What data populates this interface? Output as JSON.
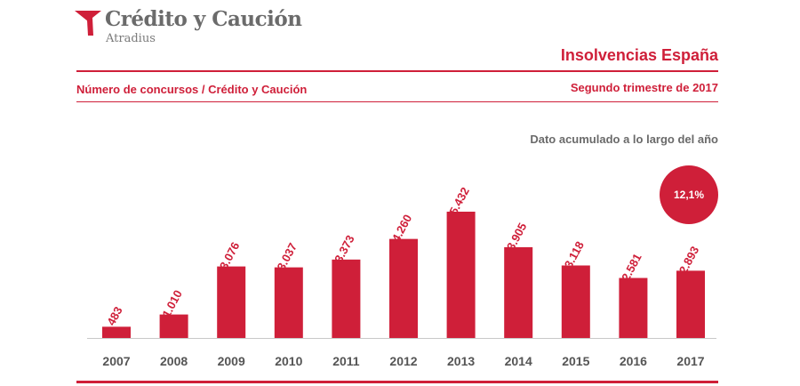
{
  "brand": {
    "name": "Crédito y Caución",
    "sub": "Atradius",
    "color": "#cf1f39"
  },
  "header": {
    "title": "Insolvencias España",
    "subtitle": "Número de concursos  / Crédito y Caución",
    "period": "Segundo trimestre de  2017",
    "note": "Dato acumulado a lo largo del año"
  },
  "chart_data": {
    "type": "bar",
    "categories": [
      "2007",
      "2008",
      "2009",
      "2010",
      "2011",
      "2012",
      "2013",
      "2014",
      "2015",
      "2016",
      "2017"
    ],
    "values": [
      483,
      1010,
      3076,
      3037,
      3373,
      4260,
      5432,
      3905,
      3118,
      2581,
      2893
    ],
    "value_labels": [
      "483",
      "1.010",
      "3.076",
      "3.037",
      "3.373",
      "4.260",
      "5.432",
      "3.905",
      "3.118",
      "2.581",
      "2.893"
    ],
    "highlight": {
      "category": "2017",
      "label": "12,1%"
    },
    "bar_color": "#cf1f39",
    "ylim": [
      0,
      5432
    ],
    "grid": false
  }
}
